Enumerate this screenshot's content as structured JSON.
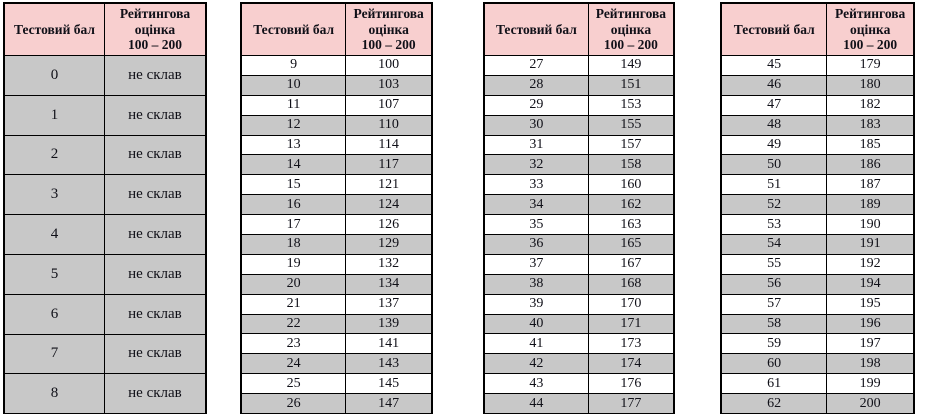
{
  "header": {
    "col1": "Тестовий бал",
    "col2_line1": "Рейтингова",
    "col2_line2": "оцінка",
    "col2_line3": "100 – 200"
  },
  "colors": {
    "header_bg": "#f8cfcf",
    "gray_row": "#c8c8c8",
    "white_row": "#ffffff",
    "border": "#000000",
    "text": "#101018"
  },
  "fail_label": "не склав",
  "tables": [
    {
      "name": "scores-0-8",
      "all_gray": true,
      "rows": [
        [
          "0",
          "не склав"
        ],
        [
          "1",
          "не склав"
        ],
        [
          "2",
          "не склав"
        ],
        [
          "3",
          "не склав"
        ],
        [
          "4",
          "не склав"
        ],
        [
          "5",
          "не склав"
        ],
        [
          "6",
          "не склав"
        ],
        [
          "7",
          "не склав"
        ],
        [
          "8",
          "не склав"
        ]
      ]
    },
    {
      "name": "scores-9-26",
      "all_gray": false,
      "rows": [
        [
          "9",
          "100"
        ],
        [
          "10",
          "103"
        ],
        [
          "11",
          "107"
        ],
        [
          "12",
          "110"
        ],
        [
          "13",
          "114"
        ],
        [
          "14",
          "117"
        ],
        [
          "15",
          "121"
        ],
        [
          "16",
          "124"
        ],
        [
          "17",
          "126"
        ],
        [
          "18",
          "129"
        ],
        [
          "19",
          "132"
        ],
        [
          "20",
          "134"
        ],
        [
          "21",
          "137"
        ],
        [
          "22",
          "139"
        ],
        [
          "23",
          "141"
        ],
        [
          "24",
          "143"
        ],
        [
          "25",
          "145"
        ],
        [
          "26",
          "147"
        ]
      ]
    },
    {
      "name": "scores-27-44",
      "all_gray": false,
      "rows": [
        [
          "27",
          "149"
        ],
        [
          "28",
          "151"
        ],
        [
          "29",
          "153"
        ],
        [
          "30",
          "155"
        ],
        [
          "31",
          "157"
        ],
        [
          "32",
          "158"
        ],
        [
          "33",
          "160"
        ],
        [
          "34",
          "162"
        ],
        [
          "35",
          "163"
        ],
        [
          "36",
          "165"
        ],
        [
          "37",
          "167"
        ],
        [
          "38",
          "168"
        ],
        [
          "39",
          "170"
        ],
        [
          "40",
          "171"
        ],
        [
          "41",
          "173"
        ],
        [
          "42",
          "174"
        ],
        [
          "43",
          "176"
        ],
        [
          "44",
          "177"
        ]
      ]
    },
    {
      "name": "scores-45-62",
      "all_gray": false,
      "rows": [
        [
          "45",
          "179"
        ],
        [
          "46",
          "180"
        ],
        [
          "47",
          "182"
        ],
        [
          "48",
          "183"
        ],
        [
          "49",
          "185"
        ],
        [
          "50",
          "186"
        ],
        [
          "51",
          "187"
        ],
        [
          "52",
          "189"
        ],
        [
          "53",
          "190"
        ],
        [
          "54",
          "191"
        ],
        [
          "55",
          "192"
        ],
        [
          "56",
          "194"
        ],
        [
          "57",
          "195"
        ],
        [
          "58",
          "196"
        ],
        [
          "59",
          "197"
        ],
        [
          "60",
          "198"
        ],
        [
          "61",
          "199"
        ],
        [
          "62",
          "200"
        ]
      ]
    }
  ]
}
